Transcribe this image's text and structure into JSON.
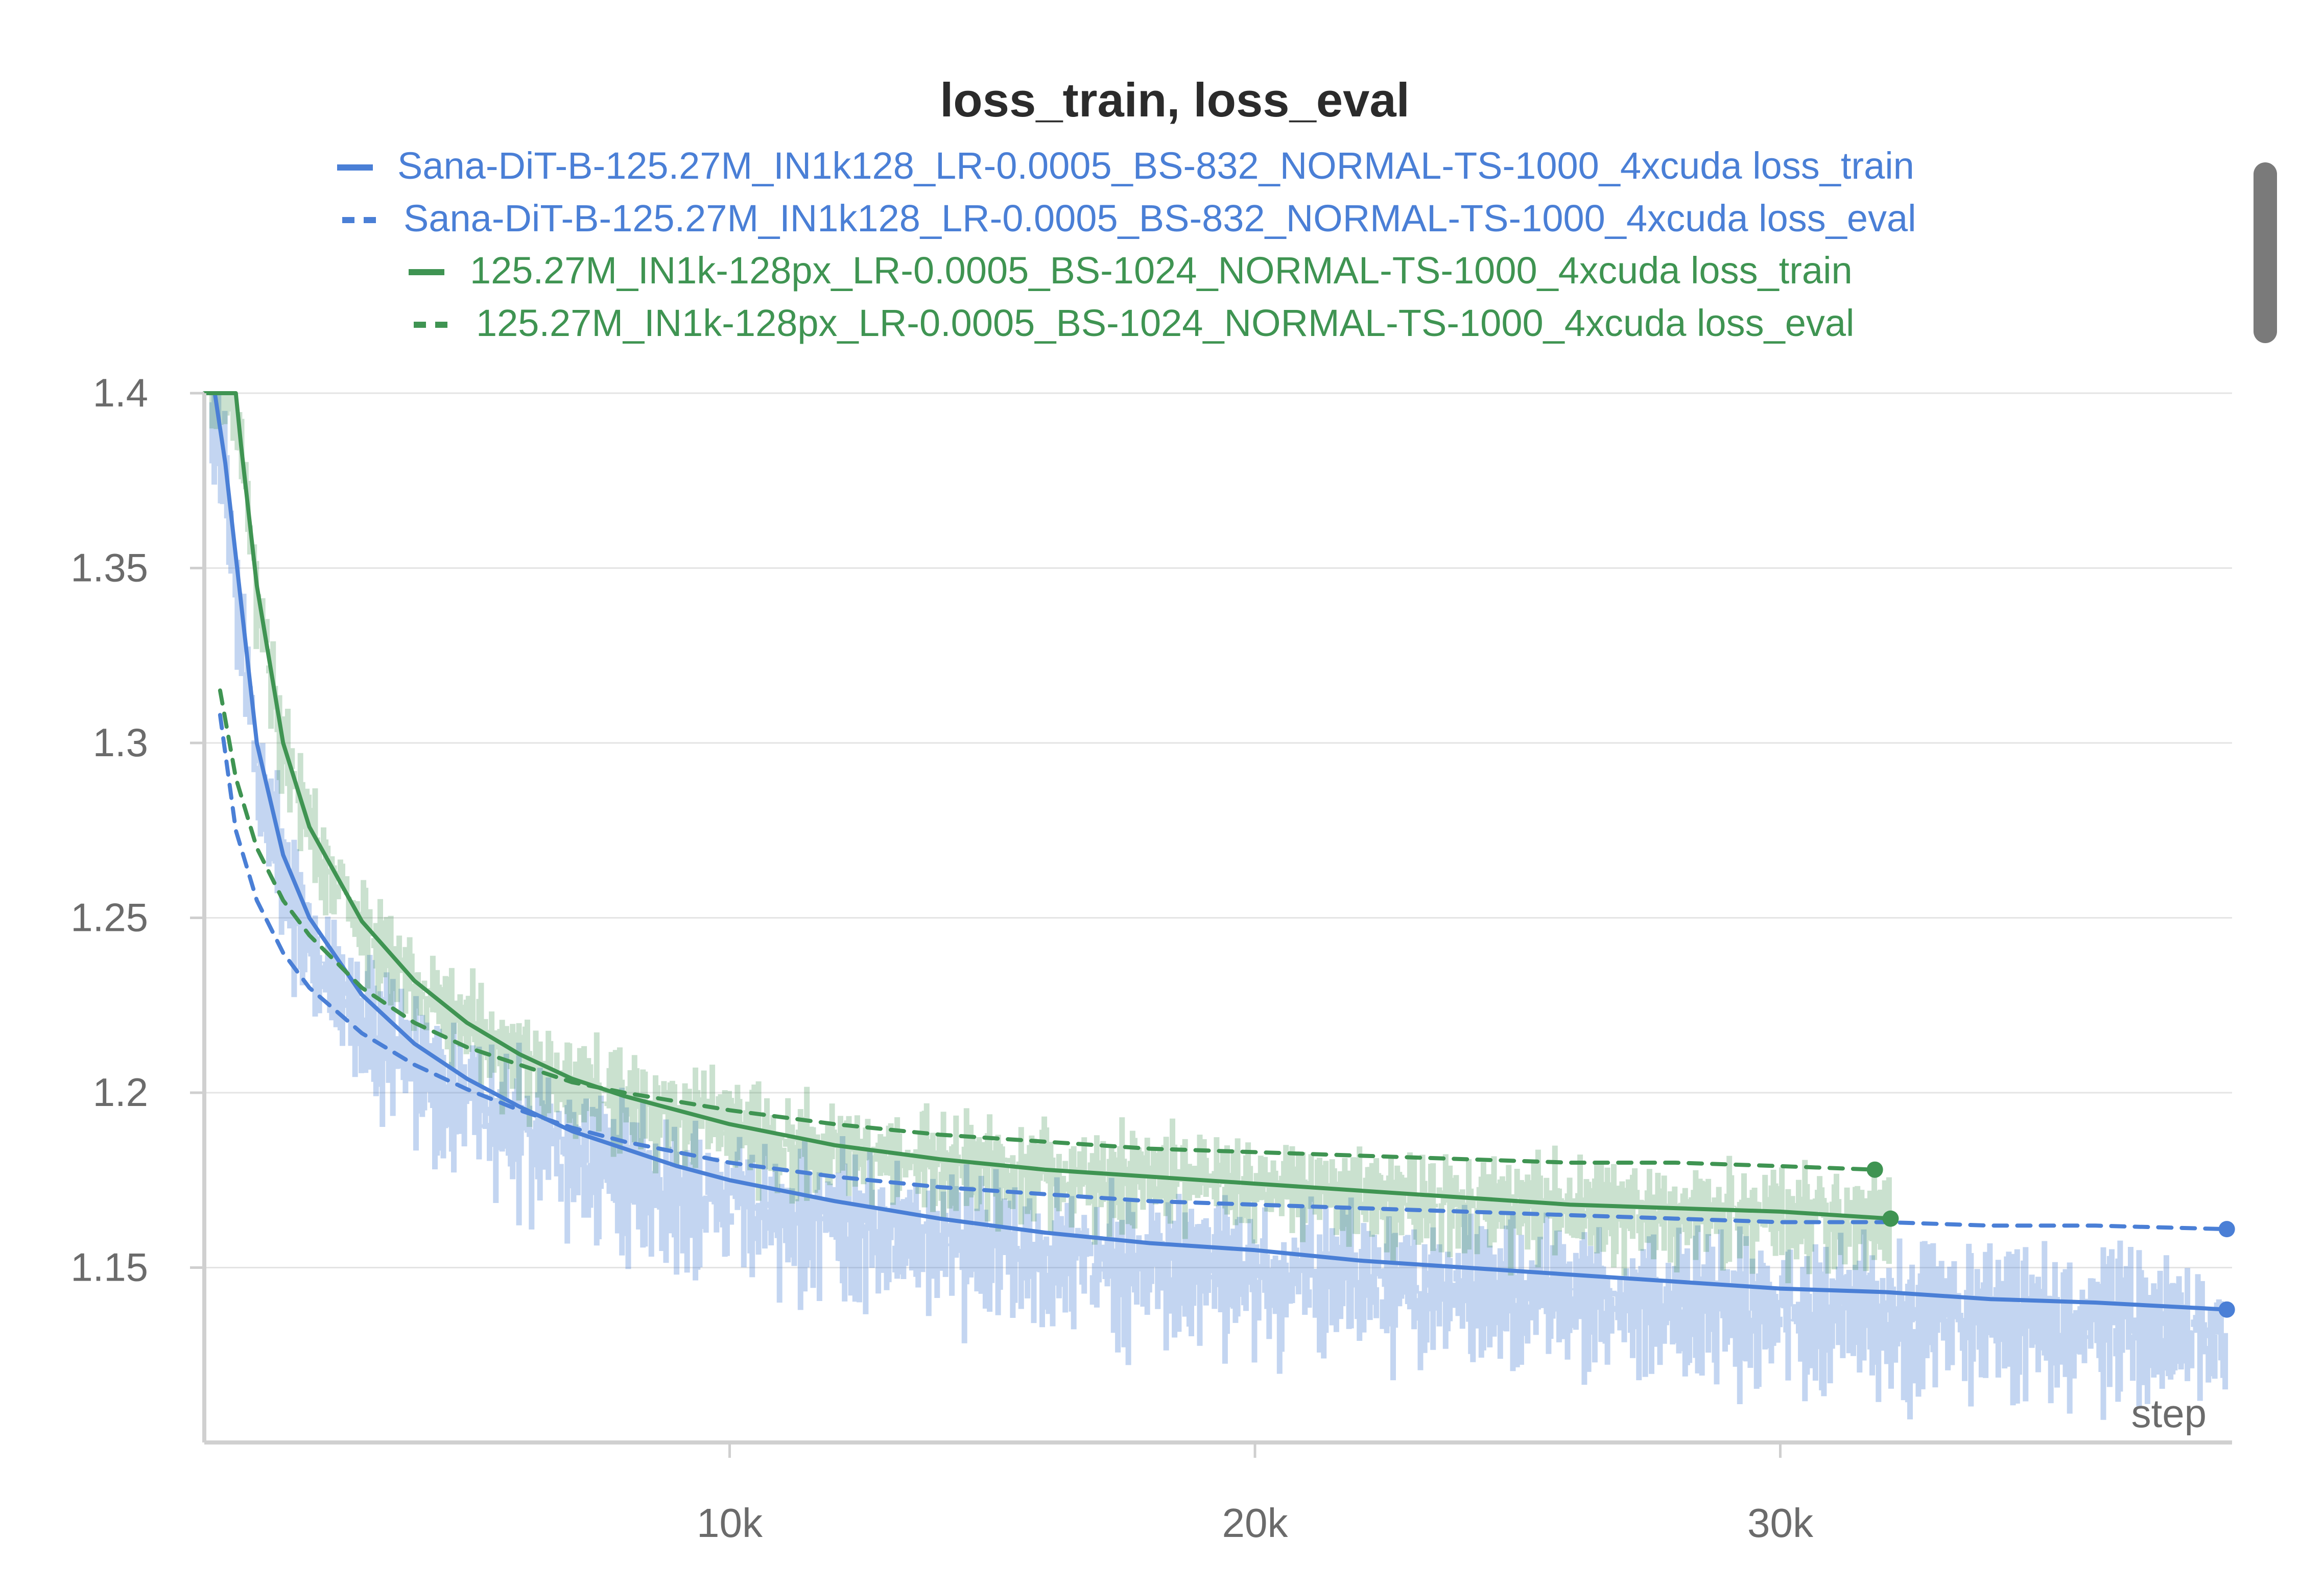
{
  "chart_data": {
    "type": "line",
    "title": "loss_train, loss_eval",
    "xlabel": "step",
    "ylabel": "",
    "xlim": [
      0,
      38600
    ],
    "ylim": [
      1.1,
      1.4
    ],
    "x_ticks": [
      10000,
      20000,
      30000
    ],
    "x_tick_labels": [
      "10k",
      "20k",
      "30k"
    ],
    "y_ticks": [
      1.15,
      1.2,
      1.25,
      1.3,
      1.35,
      1.4
    ],
    "y_tick_labels": [
      "1.15",
      "1.2",
      "1.25",
      "1.3",
      "1.35",
      "1.4"
    ],
    "grid": true,
    "legend_position": "top-center",
    "series": [
      {
        "name": "Sana-DiT-B-125.27M_IN1k128_LR-0.0005_BS-832_NORMAL-TS-1000_4xcuda loss_train",
        "color": "#4a7fd6",
        "style": "solid",
        "x": [
          0,
          200,
          400,
          700,
          1000,
          1500,
          2000,
          3000,
          4000,
          5000,
          6000,
          7000,
          8000,
          9000,
          10000,
          11000,
          12000,
          14000,
          16000,
          18000,
          20000,
          22000,
          24000,
          26000,
          28000,
          30000,
          32000,
          34000,
          36000,
          38500
        ],
        "y": [
          1.4,
          1.4,
          1.38,
          1.34,
          1.3,
          1.268,
          1.25,
          1.228,
          1.214,
          1.204,
          1.196,
          1.189,
          1.184,
          1.179,
          1.175,
          1.172,
          1.169,
          1.164,
          1.16,
          1.157,
          1.155,
          1.152,
          1.15,
          1.148,
          1.146,
          1.144,
          1.143,
          1.141,
          1.14,
          1.138
        ]
      },
      {
        "name": "Sana-DiT-B-125.27M_IN1k128_LR-0.0005_BS-832_NORMAL-TS-1000_4xcuda loss_eval",
        "color": "#4a7fd6",
        "style": "dashed",
        "x": [
          300,
          600,
          1000,
          1500,
          2000,
          3000,
          4000,
          5000,
          6000,
          7000,
          8000,
          10000,
          12000,
          14000,
          16000,
          18000,
          20000,
          22000,
          24000,
          26000,
          28000,
          30000,
          32000,
          34000,
          36000,
          38500
        ],
        "y": [
          1.308,
          1.275,
          1.255,
          1.24,
          1.23,
          1.217,
          1.208,
          1.201,
          1.195,
          1.19,
          1.186,
          1.18,
          1.176,
          1.173,
          1.171,
          1.169,
          1.168,
          1.167,
          1.166,
          1.165,
          1.164,
          1.163,
          1.163,
          1.162,
          1.162,
          1.161
        ]
      },
      {
        "name": "125.27M_IN1k-128px_LR-0.0005_BS-1024_NORMAL-TS-1000_4xcuda loss_train",
        "color": "#3f9452",
        "style": "solid",
        "x": [
          0,
          600,
          700,
          1000,
          1500,
          2000,
          3000,
          4000,
          5000,
          6000,
          7000,
          8000,
          9000,
          10000,
          12000,
          14000,
          16000,
          18000,
          20000,
          22000,
          24000,
          26000,
          28000,
          30000,
          32100
        ],
        "y": [
          1.4,
          1.4,
          1.385,
          1.345,
          1.3,
          1.276,
          1.249,
          1.232,
          1.22,
          1.211,
          1.204,
          1.199,
          1.195,
          1.191,
          1.185,
          1.181,
          1.178,
          1.176,
          1.174,
          1.172,
          1.17,
          1.168,
          1.167,
          1.166,
          1.164
        ]
      },
      {
        "name": "125.27M_IN1k-128px_LR-0.0005_BS-1024_NORMAL-TS-1000_4xcuda loss_eval",
        "color": "#3f9452",
        "style": "dashed",
        "x": [
          300,
          600,
          1000,
          1500,
          2000,
          3000,
          4000,
          5000,
          6000,
          7000,
          8000,
          10000,
          12000,
          14000,
          16000,
          18000,
          20000,
          22000,
          24000,
          26000,
          28000,
          30000,
          31800
        ],
        "y": [
          1.315,
          1.29,
          1.27,
          1.255,
          1.245,
          1.23,
          1.22,
          1.213,
          1.208,
          1.203,
          1.2,
          1.195,
          1.191,
          1.188,
          1.186,
          1.184,
          1.183,
          1.182,
          1.181,
          1.18,
          1.18,
          1.179,
          1.178
        ]
      }
    ]
  }
}
